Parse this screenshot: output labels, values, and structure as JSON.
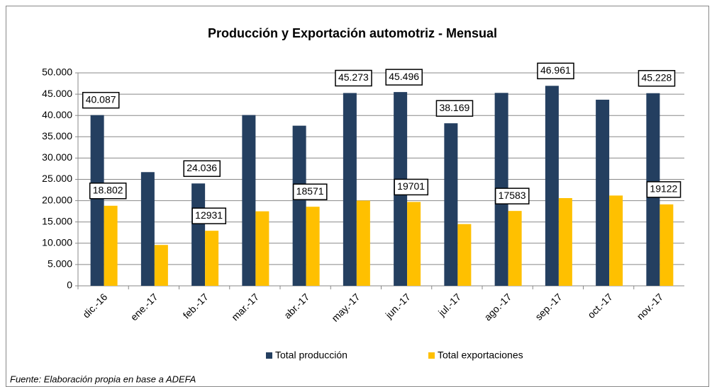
{
  "chart_data": {
    "type": "bar",
    "title": "Producción y Exportación automotriz - Mensual",
    "categories": [
      "dic.-16",
      "ene.-17",
      "feb.-17",
      "mar.-17",
      "abr.-17",
      "may.-17",
      "jun.-17",
      "jul.-17",
      "ago.-17",
      "sep.-17",
      "oct.-17",
      "nov.-17"
    ],
    "series": [
      {
        "name": "Total producción",
        "color": "#243f60",
        "values": [
          40087,
          26700,
          24036,
          40100,
          37600,
          45273,
          45496,
          38169,
          45300,
          46961,
          43700,
          45228
        ],
        "value_labels": [
          "40.087",
          null,
          "24.036",
          null,
          null,
          "45.273",
          "45.496",
          "38.169",
          null,
          "46.961",
          null,
          "45.228"
        ]
      },
      {
        "name": "Total exportaciones",
        "color": "#ffc000",
        "values": [
          18802,
          9600,
          12931,
          17500,
          18571,
          20000,
          19701,
          14500,
          17583,
          20600,
          21200,
          19122
        ],
        "value_labels": [
          "18.802",
          null,
          "12931",
          null,
          "18571",
          null,
          "19701",
          null,
          "17583",
          null,
          null,
          "19122"
        ]
      }
    ],
    "ylim": [
      0,
      50000
    ],
    "yticks": [
      0,
      {
        "value": 5000,
        "label": "5.000"
      },
      {
        "value": 10000,
        "label": "10.000"
      },
      {
        "value": 15000,
        "label": "15.000"
      },
      {
        "value": 20000,
        "label": "20.000"
      },
      {
        "value": 25000,
        "label": "25.000"
      },
      {
        "value": 30000,
        "label": "30.000"
      },
      {
        "value": 35000,
        "label": "35.000"
      },
      {
        "value": 40000,
        "label": "40.000"
      },
      {
        "value": 45000,
        "label": "45.000"
      },
      {
        "value": 50000,
        "label": "50.000"
      }
    ],
    "grid": true,
    "legend": "bottom",
    "source": "Fuente: Elaboración propia en base a ADEFA"
  }
}
